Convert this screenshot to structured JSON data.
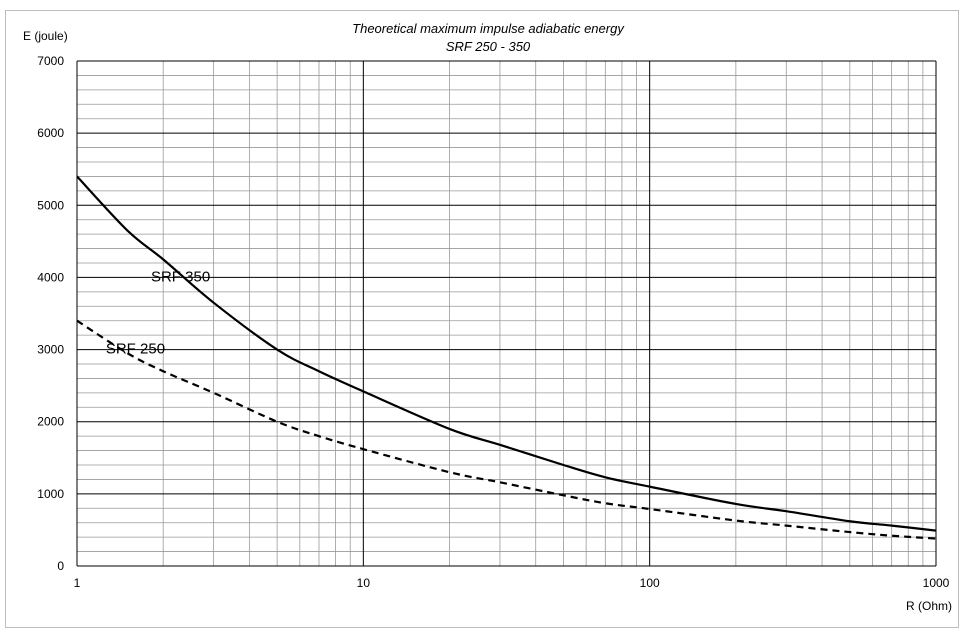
{
  "chart_data": {
    "type": "line",
    "title": "Theoretical maximum impulse adiabatic energy",
    "subtitle": "SRF 250 - 350",
    "xlabel": "R (Ohm)",
    "ylabel": "E (joule)",
    "x_scale": "log",
    "xlim": [
      1,
      1000
    ],
    "ylim": [
      0,
      7000
    ],
    "x_ticks": [
      "1",
      "10",
      "100",
      "1000"
    ],
    "y_ticks": [
      "0",
      "1000",
      "2000",
      "3000",
      "4000",
      "5000",
      "6000",
      "7000"
    ],
    "grid": true,
    "series": [
      {
        "name": "SRF 350",
        "style": "solid",
        "x": [
          1,
          1.5,
          2,
          3,
          5,
          7,
          10,
          20,
          30,
          50,
          70,
          100,
          200,
          300,
          500,
          700,
          1000
        ],
        "y": [
          5400,
          4650,
          4250,
          3650,
          3000,
          2700,
          2420,
          1900,
          1680,
          1400,
          1230,
          1100,
          860,
          760,
          620,
          560,
          490
        ]
      },
      {
        "name": "SRF 250",
        "style": "dashed",
        "x": [
          1,
          1.5,
          2,
          3,
          5,
          7,
          10,
          20,
          30,
          50,
          70,
          100,
          200,
          300,
          500,
          700,
          1000
        ],
        "y": [
          3400,
          2950,
          2700,
          2400,
          2000,
          1800,
          1620,
          1300,
          1160,
          980,
          870,
          790,
          630,
          560,
          470,
          420,
          380
        ]
      }
    ]
  }
}
